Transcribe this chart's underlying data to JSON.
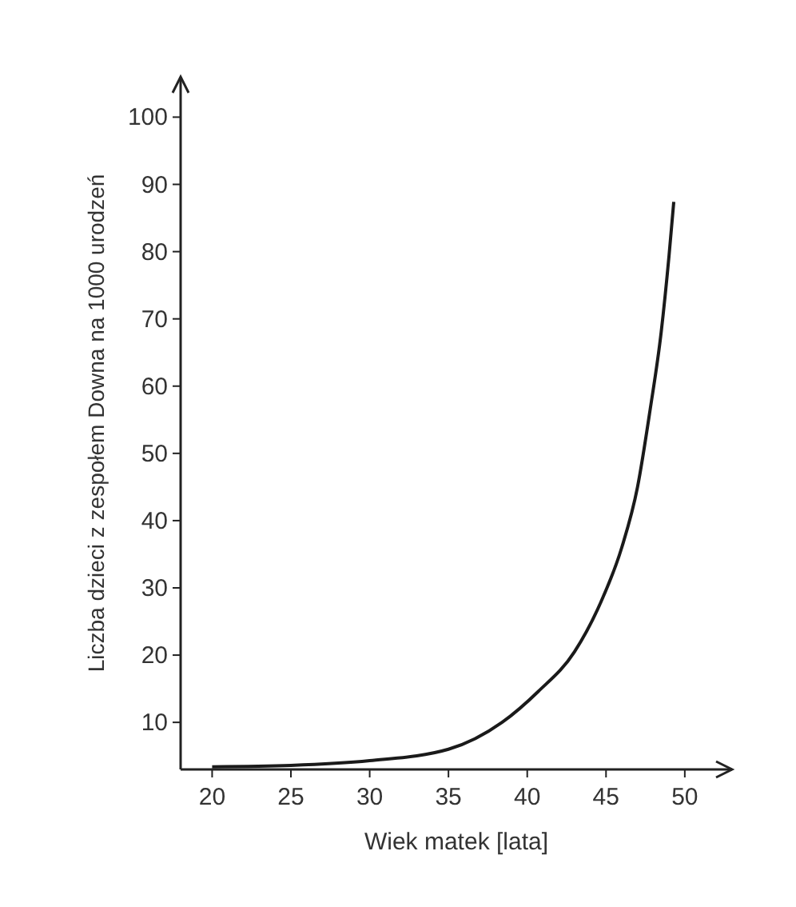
{
  "chart_data": {
    "type": "line",
    "xlabel": "Wiek matek [lata]",
    "ylabel": "Liczba dzieci z zespołem Downa na 1000 urodzeń",
    "x": [
      20,
      25,
      30,
      35,
      38.4,
      40.7,
      43,
      44.6,
      46,
      47,
      47.8,
      48.5,
      49,
      49.3
    ],
    "series": [
      {
        "color": "#1a1a1a",
        "values": [
          3.4,
          3.6,
          4.3,
          6,
          10,
          14.6,
          20.5,
          27.5,
          36,
          45,
          56.5,
          68,
          79.4,
          87.4
        ]
      }
    ],
    "xlim": [
      18,
      53
    ],
    "ylim": [
      3,
      106
    ],
    "xticks": [
      20,
      25,
      30,
      35,
      40,
      45,
      50
    ],
    "yticks": [
      10,
      20,
      30,
      40,
      50,
      60,
      70,
      80,
      90,
      100
    ],
    "grid": false,
    "marker": "none",
    "line_style": "solid"
  }
}
